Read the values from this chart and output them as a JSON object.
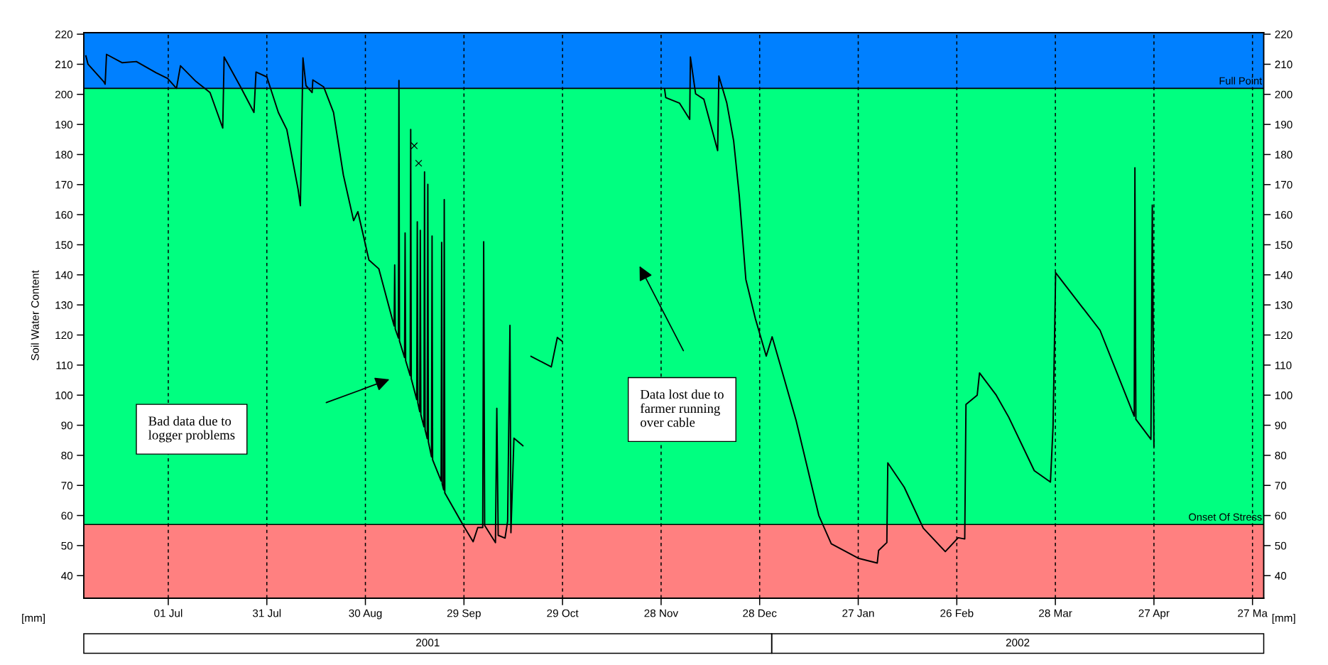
{
  "chart_data": {
    "type": "line",
    "ylabel": "Soil Water Content",
    "xlim": [
      "2001-06-05T07:00",
      "2002-05-30T10:00"
    ],
    "xticks": [
      {
        "value": "2001-07-01",
        "label": "01 Jul"
      },
      {
        "value": "2001-07-31",
        "label": "31 Jul"
      },
      {
        "value": "2001-08-30",
        "label": "30 Aug"
      },
      {
        "value": "2001-09-29",
        "label": "29 Sep"
      },
      {
        "value": "2001-10-29",
        "label": "29 Oct"
      },
      {
        "value": "2001-11-28",
        "label": "28 Nov"
      },
      {
        "value": "2001-12-28",
        "label": "28 Dec"
      },
      {
        "value": "2002-01-27",
        "label": "27 Jan"
      },
      {
        "value": "2002-02-26",
        "label": "26 Feb"
      },
      {
        "value": "2002-03-28",
        "label": "28 Mar"
      },
      {
        "value": "2002-04-27",
        "label": "27 Apr"
      },
      {
        "value": "2002-05-27",
        "label": "27 Ma"
      }
    ],
    "ylim": [
      32.5,
      220.5
    ],
    "yticks": [
      40,
      50,
      60,
      70,
      80,
      90,
      100,
      110,
      120,
      130,
      140,
      150,
      160,
      170,
      180,
      190,
      200,
      210,
      220
    ],
    "y2lim": [
      32.5,
      220.5
    ],
    "y2ticks": [
      40,
      50,
      60,
      70,
      80,
      90,
      100,
      110,
      120,
      130,
      140,
      150,
      160,
      170,
      180,
      190,
      200,
      210,
      220
    ],
    "grid": "x",
    "bands": [
      {
        "axis": "y",
        "from": 202,
        "to": 220.5,
        "color": "#0080ff"
      },
      {
        "axis": "y",
        "from": 57,
        "to": 202,
        "color": "#00ff80"
      },
      {
        "axis": "y",
        "from": 32.5,
        "to": 57,
        "color": "#ff8080"
      }
    ],
    "ref_lines": [
      {
        "axis": "y",
        "value": 202,
        "label": "Full Point",
        "color": "#000000"
      },
      {
        "axis": "y",
        "value": 57,
        "label": "Onset Of Stress",
        "color": "#000000"
      }
    ],
    "series": [
      {
        "color": "#000000",
        "line_style": "solid",
        "marker": "none",
        "x": [
          "2001-06-05T22:00",
          "2001-06-06T14:00",
          "2001-06-11T07:00",
          "2001-06-11T19:00",
          "2001-06-12T05:00",
          "2001-06-17T00:00",
          "2001-06-21T07:00",
          "2001-06-27T07:00",
          "2001-06-30T19:00",
          "2001-07-03T12:00",
          "2001-07-04T17:00",
          "2001-07-09T10:00",
          "2001-07-13T17:00",
          "2001-07-17T14:00",
          "2001-07-18T00:00",
          "2001-07-22T19:00",
          "2001-07-27T02:00",
          "2001-07-27T17:00",
          "2001-07-31T00:00",
          "2001-08-03T12:00",
          "2001-08-06T02:00",
          "2001-08-09T12:00",
          "2001-08-10T05:00",
          "2001-08-11T00:00",
          "2001-08-11T22:00",
          "2001-08-13T19:00",
          "2001-08-14T00:00",
          "2001-08-17T07:00",
          "2001-08-20T07:00",
          "2001-08-23T07:00",
          "2001-08-26T10:00",
          "2001-08-27T17:00",
          "2001-08-31T02:00",
          "2001-09-03T02:00",
          "2001-09-07T00:00",
          "2001-09-07T18:00",
          "2001-09-07T22:00",
          "2001-09-08T02:00",
          "2001-09-09T01:00",
          "2001-09-09T05:00",
          "2001-09-09T09:00",
          "2001-09-10T22:00",
          "2001-09-11T02:00",
          "2001-09-11T06:00",
          "2001-09-12T15:00",
          "2001-09-12T19:00",
          "2001-09-12T23:00",
          "2001-09-14T15:00",
          "2001-09-14T19:00",
          "2001-09-14T23:00",
          "2001-09-15T13:00",
          "2001-09-15T17:00",
          "2001-09-15T21:00",
          "2001-09-16T20:00",
          "2001-09-17T00:00",
          "2001-09-17T04:00",
          "2001-09-17T20:00",
          "2001-09-18T00:00",
          "2001-09-18T04:00",
          "2001-09-19T03:00",
          "2001-09-19T07:00",
          "2001-09-19T11:00",
          "2001-09-22T01:00",
          "2001-09-22T05:00",
          "2001-09-22T09:00",
          "2001-09-22T20:00",
          "2001-09-23T00:00",
          "2001-09-23T04:00",
          "2001-09-28T19:00",
          "2001-10-01T19:00",
          "2001-10-03T05:00",
          "2001-10-04T17:00",
          "2001-10-05T00:00",
          "2001-10-05T07:00",
          "2001-10-08T14:00",
          "2001-10-09T00:00",
          "2001-10-09T10:00",
          "2001-10-11T12:00",
          "2001-10-12T07:00",
          "2001-10-13T00:00",
          "2001-10-13T07:00",
          "2001-10-14T05:00",
          "2001-10-16T22:00",
          "2001-10-18T00:00",
          "2001-10-19T10:00",
          "2001-10-25T14:00",
          "2001-10-27T10:00",
          "2001-10-28T19:00",
          "2001-11-15T00:00",
          "2001-11-29T02:00",
          "2001-11-29T10:00",
          "2001-12-03T14:00",
          "2001-12-06T17:00",
          "2001-12-06T22:00",
          "2001-12-08T12:00",
          "2001-12-11T00:00",
          "2001-12-15T05:00",
          "2001-12-15T14:00",
          "2001-12-18T00:00",
          "2001-12-20T02:00",
          "2001-12-21T19:00",
          "2001-12-23T19:00",
          "2001-12-26T17:00",
          "2001-12-30T00:00",
          "2001-12-31T19:00",
          "2002-01-03T10:00",
          "2002-01-08T02:00",
          "2002-01-15T00:00",
          "2002-01-18T19:00",
          "2002-01-27T00:00",
          "2002-02-01T19:00",
          "2002-02-02T05:00",
          "2002-02-04T17:00",
          "2002-02-05T00:00",
          "2002-02-10T00:00",
          "2002-02-15T19:00",
          "2002-02-22T12:00",
          "2002-02-26T10:00",
          "2002-02-28T10:00",
          "2002-02-28T19:00",
          "2002-03-04T05:00",
          "2002-03-04T22:00",
          "2002-03-10T00:00",
          "2002-03-13T19:00",
          "2002-03-21T14:00",
          "2002-03-26T12:00",
          "2002-03-27T07:00",
          "2002-03-28T02:00",
          "2002-04-10T14:00",
          "2002-04-21T00:00",
          "2002-04-21T05:00",
          "2002-04-21T12:00",
          "2002-04-26T02:00",
          "2002-04-26T12:00",
          "2002-04-27T00:00"
        ],
        "values": [
          212.8,
          210,
          204.3,
          203.4,
          213.3,
          210.5,
          210.9,
          207.2,
          205.3,
          202,
          209.5,
          204.3,
          200.6,
          188.8,
          212.4,
          202.9,
          194,
          207.4,
          205.8,
          194,
          188.3,
          168.5,
          163,
          212.1,
          202.9,
          200.6,
          204.8,
          202.5,
          194,
          173.2,
          158,
          161,
          144.9,
          142,
          126,
          123,
          143.3,
          122,
          119,
          204.6,
          118,
          112.5,
          153.9,
          111.5,
          106.5,
          188.3,
          105.5,
          98.5,
          157.6,
          97.5,
          94.5,
          154.8,
          93.5,
          89.5,
          174.2,
          88.5,
          85.5,
          170.1,
          84.5,
          79.5,
          152.9,
          78.5,
          71.5,
          150.8,
          70.5,
          68.5,
          165,
          67.5,
          56.7,
          51.3,
          56,
          56,
          151,
          56.7,
          51,
          95.6,
          53.4,
          52.5,
          58.1,
          123.2,
          54.3,
          85.7,
          83.2,
          null,
          112.9,
          109.4,
          119.2,
          118,
          null,
          201.6,
          198.9,
          197.1,
          191.7,
          212.4,
          200.2,
          198.4,
          181.3,
          206.1,
          197.1,
          184.5,
          166.4,
          138.5,
          125.4,
          113,
          119.4,
          109.5,
          91.6,
          60,
          50.6,
          45.8,
          44.2,
          48.4,
          51,
          77.5,
          69.4,
          55.8,
          48,
          52.6,
          52.2,
          96.9,
          100,
          107.4,
          100,
          92.7,
          74.9,
          71.1,
          89.5,
          140.7,
          121.6,
          93,
          175.6,
          92,
          85.3,
          163.2,
          83
        ]
      },
      {
        "type": "scatter",
        "color": "#000000",
        "marker": "cross",
        "x": [
          "2001-09-13T21:00",
          "2001-09-15T05:00"
        ],
        "values": [
          182.9,
          177.1
        ]
      }
    ],
    "annotations": [
      "Bad data due to\nlogger problems",
      "Data lost due to\nfarmer running\nover cable",
      "[mm]",
      "[mm]",
      "2001",
      "2002"
    ]
  }
}
